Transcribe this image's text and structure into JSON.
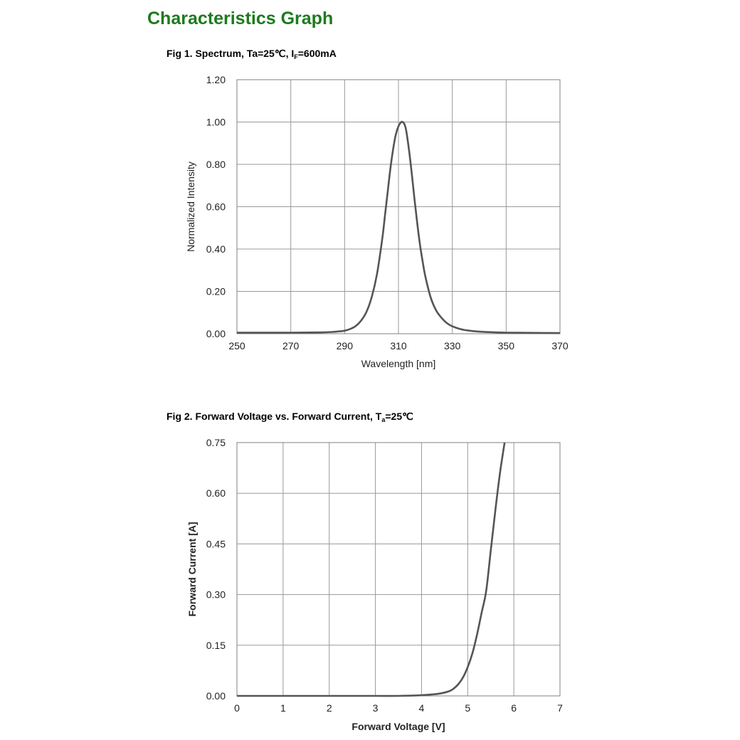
{
  "page": {
    "title": "Characteristics Graph",
    "title_color": "#1e7a1e"
  },
  "figures": [
    {
      "caption_prefix": "Fig 1. Spectrum, Ta=25℃, I",
      "caption_sub": "F",
      "caption_suffix": "=600mA"
    },
    {
      "caption_prefix": "Fig 2. Forward Voltage vs. Forward Current, T",
      "caption_sub": "a",
      "caption_suffix": "=25℃"
    }
  ],
  "chart_data": [
    {
      "type": "line",
      "xlabel": "Wavelength [nm]",
      "ylabel": "Normalized Intensity",
      "xlim": [
        250,
        370
      ],
      "ylim": [
        0,
        1.2
      ],
      "xticks": [
        "250",
        "270",
        "290",
        "310",
        "330",
        "350",
        "370"
      ],
      "yticks": [
        "0.00",
        "0.20",
        "0.40",
        "0.60",
        "0.80",
        "1.00",
        "1.20"
      ],
      "grid": true,
      "line_color": "#555555",
      "series": [
        {
          "x": [
            250,
            270,
            280,
            285,
            288,
            290,
            292,
            294,
            296,
            298,
            300,
            302,
            304,
            305,
            306,
            307,
            308,
            309,
            310,
            311,
            311.5,
            312,
            312.5,
            313,
            314,
            315,
            316,
            317,
            318,
            319,
            320,
            322,
            324,
            326,
            328,
            330,
            333,
            336,
            340,
            345,
            350,
            360,
            370
          ],
          "y": [
            0.005,
            0.005,
            0.006,
            0.008,
            0.011,
            0.014,
            0.022,
            0.035,
            0.06,
            0.1,
            0.17,
            0.28,
            0.45,
            0.56,
            0.67,
            0.78,
            0.87,
            0.94,
            0.98,
            1.0,
            1.0,
            0.995,
            0.98,
            0.95,
            0.86,
            0.75,
            0.63,
            0.52,
            0.42,
            0.34,
            0.27,
            0.17,
            0.11,
            0.075,
            0.05,
            0.035,
            0.022,
            0.015,
            0.01,
            0.007,
            0.005,
            0.004,
            0.003
          ]
        }
      ]
    },
    {
      "type": "line",
      "xlabel": "Forward Voltage [V]",
      "ylabel": "Forward Current [A]",
      "xlim": [
        0,
        7
      ],
      "ylim": [
        0,
        0.75
      ],
      "xticks": [
        "0",
        "1",
        "2",
        "3",
        "4",
        "5",
        "6",
        "7"
      ],
      "yticks": [
        "0.00",
        "0.15",
        "0.30",
        "0.45",
        "0.60",
        "0.75"
      ],
      "grid": true,
      "line_color": "#555555",
      "series": [
        {
          "x": [
            0,
            1,
            2,
            3,
            3.5,
            4.0,
            4.2,
            4.4,
            4.6,
            4.7,
            4.8,
            4.9,
            5.0,
            5.1,
            5.2,
            5.3,
            5.4,
            5.5,
            5.6,
            5.7,
            5.8
          ],
          "y": [
            0.0,
            0.0,
            0.0,
            0.0,
            0.0,
            0.002,
            0.004,
            0.007,
            0.014,
            0.022,
            0.035,
            0.055,
            0.085,
            0.125,
            0.18,
            0.245,
            0.31,
            0.43,
            0.55,
            0.66,
            0.75
          ]
        }
      ]
    }
  ]
}
